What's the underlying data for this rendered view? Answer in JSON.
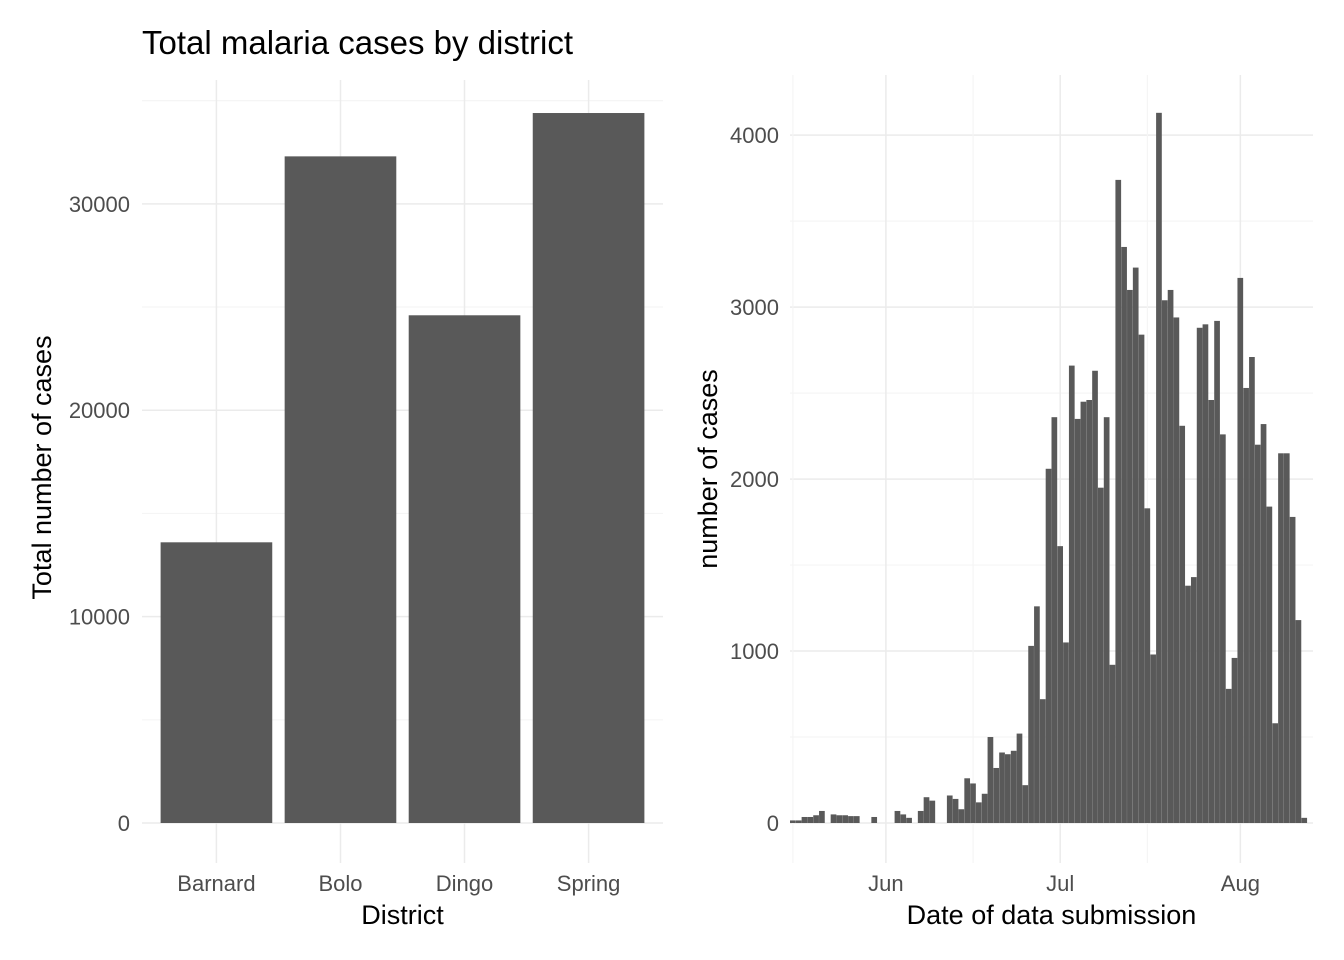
{
  "chart_data": [
    {
      "type": "bar",
      "title": "Total malaria cases by district",
      "xlabel": "District",
      "ylabel": "Total number of cases",
      "categories": [
        "Barnard",
        "Bolo",
        "Dingo",
        "Spring"
      ],
      "values": [
        13600,
        32300,
        24600,
        34400
      ],
      "ylim": [
        0,
        36000
      ],
      "yticks": [
        0,
        10000,
        20000,
        30000
      ],
      "ytick_labels": [
        "0",
        "10000",
        "20000",
        "30000"
      ],
      "bar_color": "#595959",
      "grid": true
    },
    {
      "type": "bar",
      "title": "",
      "xlabel": "Date of data submission",
      "ylabel": "number of cases",
      "x_start": "2020-05-16",
      "x_end": "2020-08-13",
      "x_ticks": [
        "2020-06-01",
        "2020-07-01",
        "2020-08-01"
      ],
      "x_tick_labels": [
        "Jun",
        "Jul",
        "Aug"
      ],
      "values": [
        15,
        15,
        35,
        35,
        45,
        70,
        0,
        50,
        45,
        45,
        40,
        40,
        0,
        0,
        35,
        0,
        0,
        0,
        70,
        50,
        30,
        0,
        70,
        150,
        130,
        0,
        0,
        160,
        140,
        80,
        260,
        230,
        120,
        170,
        500,
        320,
        410,
        400,
        420,
        520,
        220,
        1030,
        1260,
        720,
        2060,
        2360,
        1610,
        1050,
        2660,
        2350,
        2450,
        2460,
        2630,
        1950,
        2360,
        920,
        3740,
        3350,
        3100,
        3230,
        2840,
        1830,
        980,
        4130,
        3040,
        3100,
        2940,
        2310,
        1380,
        1430,
        2880,
        2900,
        2460,
        2920,
        2260,
        780,
        960,
        3170,
        2530,
        2710,
        2200,
        2320,
        1840,
        580,
        2150,
        2150,
        1780,
        1180,
        30
      ],
      "ylim": [
        0,
        4350
      ],
      "yticks": [
        0,
        1000,
        2000,
        3000,
        4000
      ],
      "ytick_labels": [
        "0",
        "1000",
        "2000",
        "3000",
        "4000"
      ],
      "bar_color": "#595959",
      "grid": true
    }
  ]
}
